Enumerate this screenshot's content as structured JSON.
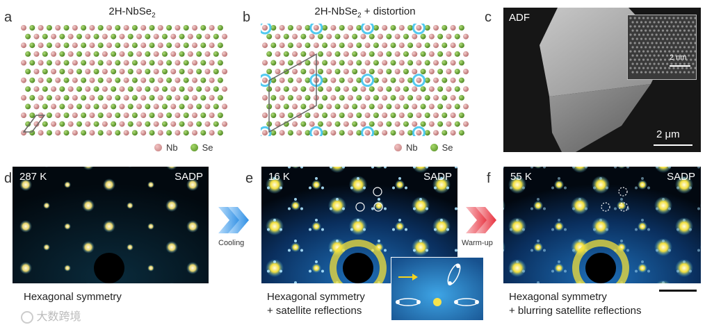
{
  "panels": {
    "a": {
      "letter": "a",
      "title": "2H-NbSe",
      "title_sub": "2",
      "title_rest": ""
    },
    "b": {
      "letter": "b",
      "title": "2H-NbSe",
      "title_sub": "2",
      "title_rest": " + distortion"
    },
    "c": {
      "letter": "c",
      "label": "ADF",
      "inset_scale": "2 nm",
      "scale": "2 μm"
    },
    "d": {
      "letter": "d",
      "temp": "287 K",
      "mode": "SADP",
      "caption": [
        "Hexagonal symmetry"
      ]
    },
    "e": {
      "letter": "e",
      "temp": "16 K",
      "mode": "SADP",
      "caption": [
        "Hexagonal symmetry",
        "+ satellite reflections"
      ]
    },
    "f": {
      "letter": "f",
      "temp": "55 K",
      "mode": "SADP",
      "caption": [
        "Hexagonal symmetry",
        "+ blurring satellite reflections"
      ]
    }
  },
  "legend": {
    "nb": "Nb",
    "se": "Se"
  },
  "arrows": {
    "cooling": "Cooling",
    "warmup": "Warm-up"
  },
  "colors": {
    "nb": "#c17a7a",
    "se": "#4f8a1e",
    "cyan": "#3fc4ee",
    "cooling": "#3a9be8",
    "warmup": "#ee4a55"
  },
  "watermark": "大数跨境"
}
